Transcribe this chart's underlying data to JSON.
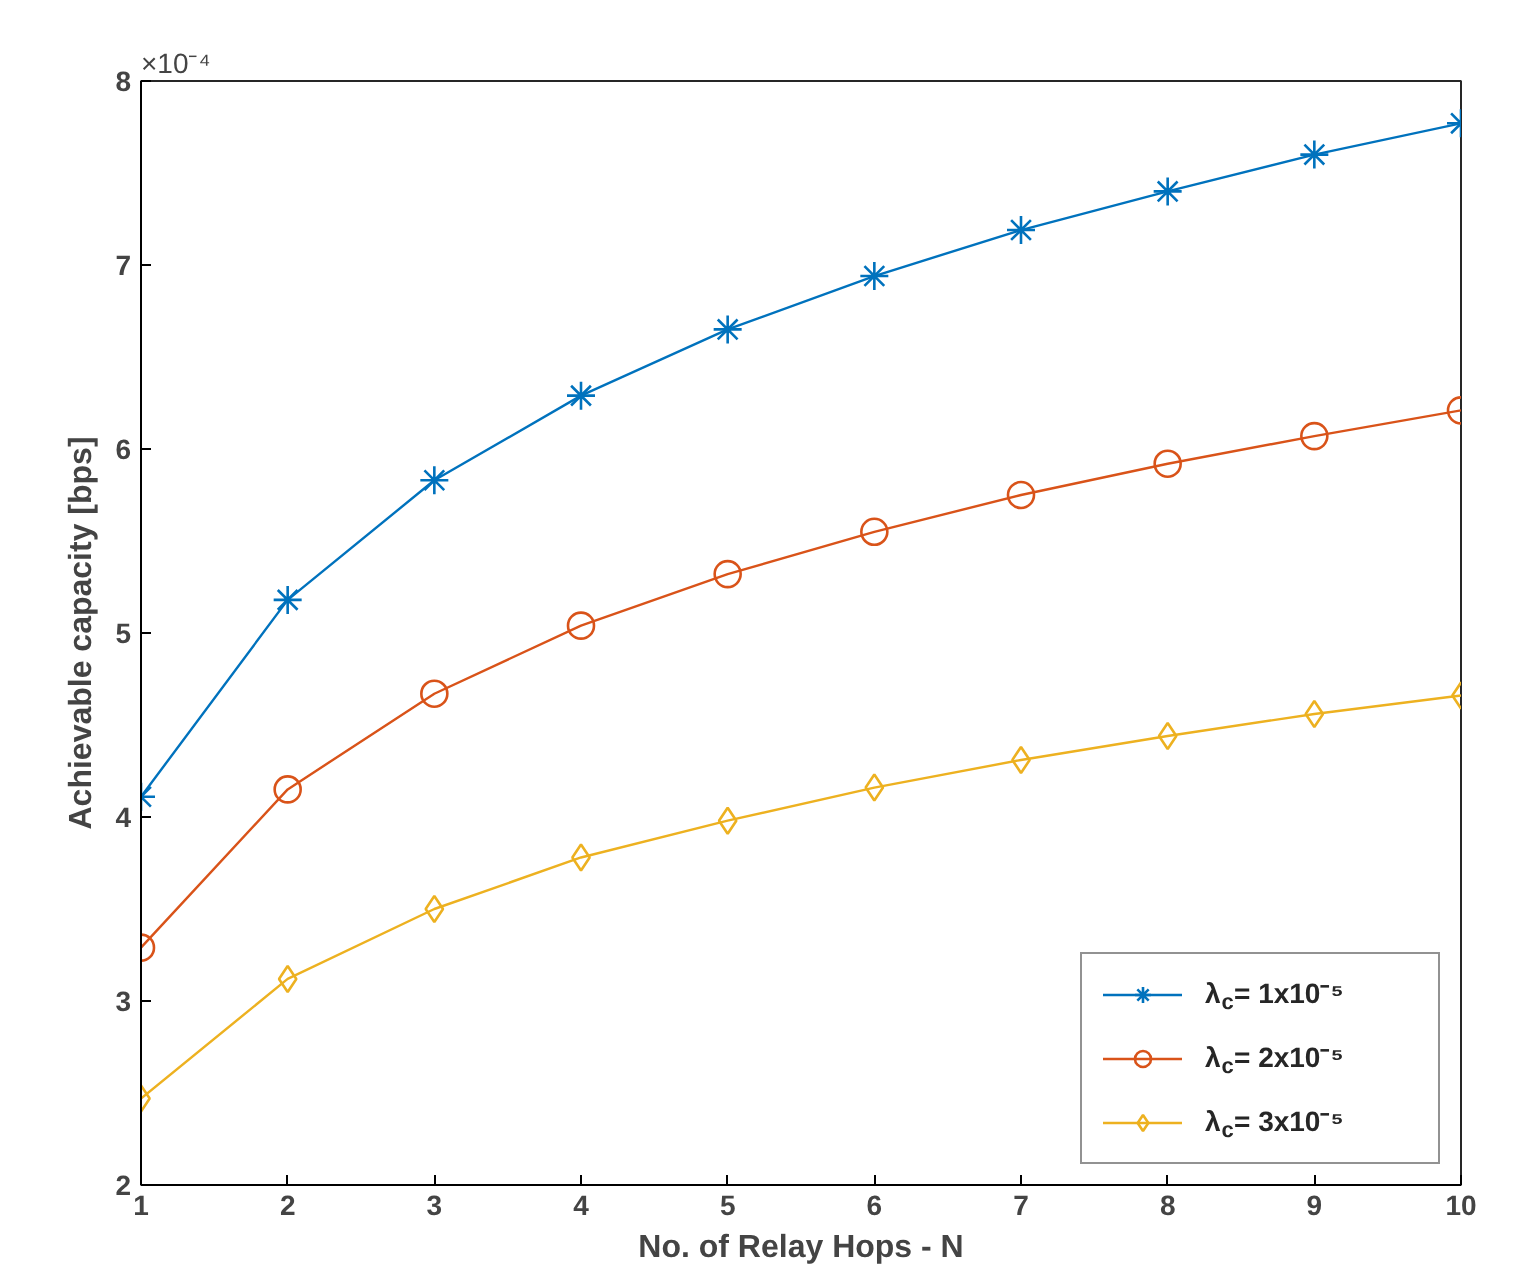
{
  "chart_data": {
    "type": "line",
    "xlabel": "No. of Relay Hops - N",
    "ylabel": "Achievable capacity [bps]",
    "annotations": [
      "×10⁻⁴"
    ],
    "x": [
      1,
      2,
      3,
      4,
      5,
      6,
      7,
      8,
      9,
      10
    ],
    "series": [
      {
        "name": "λ$_{c}$= 1x10⁻⁵",
        "color": "#0072bd",
        "marker": "cross",
        "values": [
          4.11,
          5.18,
          5.83,
          6.29,
          6.65,
          6.94,
          7.19,
          7.4,
          7.6,
          7.77
        ]
      },
      {
        "name": "λ$_{c}$= 2x10⁻⁵",
        "color": "#d95319",
        "marker": "circle",
        "values": [
          3.29,
          4.15,
          4.67,
          5.04,
          5.32,
          5.55,
          5.75,
          5.92,
          6.07,
          6.21
        ]
      },
      {
        "name": "λ$_{c}$= 3x10⁻⁵",
        "color": "#edb120",
        "marker": "diamond",
        "values": [
          2.47,
          3.12,
          3.5,
          3.78,
          3.98,
          4.16,
          4.31,
          4.44,
          4.56,
          4.66
        ]
      }
    ],
    "xlim": [
      1,
      10
    ],
    "ylim": [
      2,
      8
    ],
    "xticks": [
      1,
      2,
      3,
      4,
      5,
      6,
      7,
      8,
      9,
      10
    ],
    "yticks": [
      2,
      3,
      4,
      5,
      6,
      7,
      8
    ],
    "grid": false,
    "legend": "bottom right",
    "line_style": "solid"
  }
}
